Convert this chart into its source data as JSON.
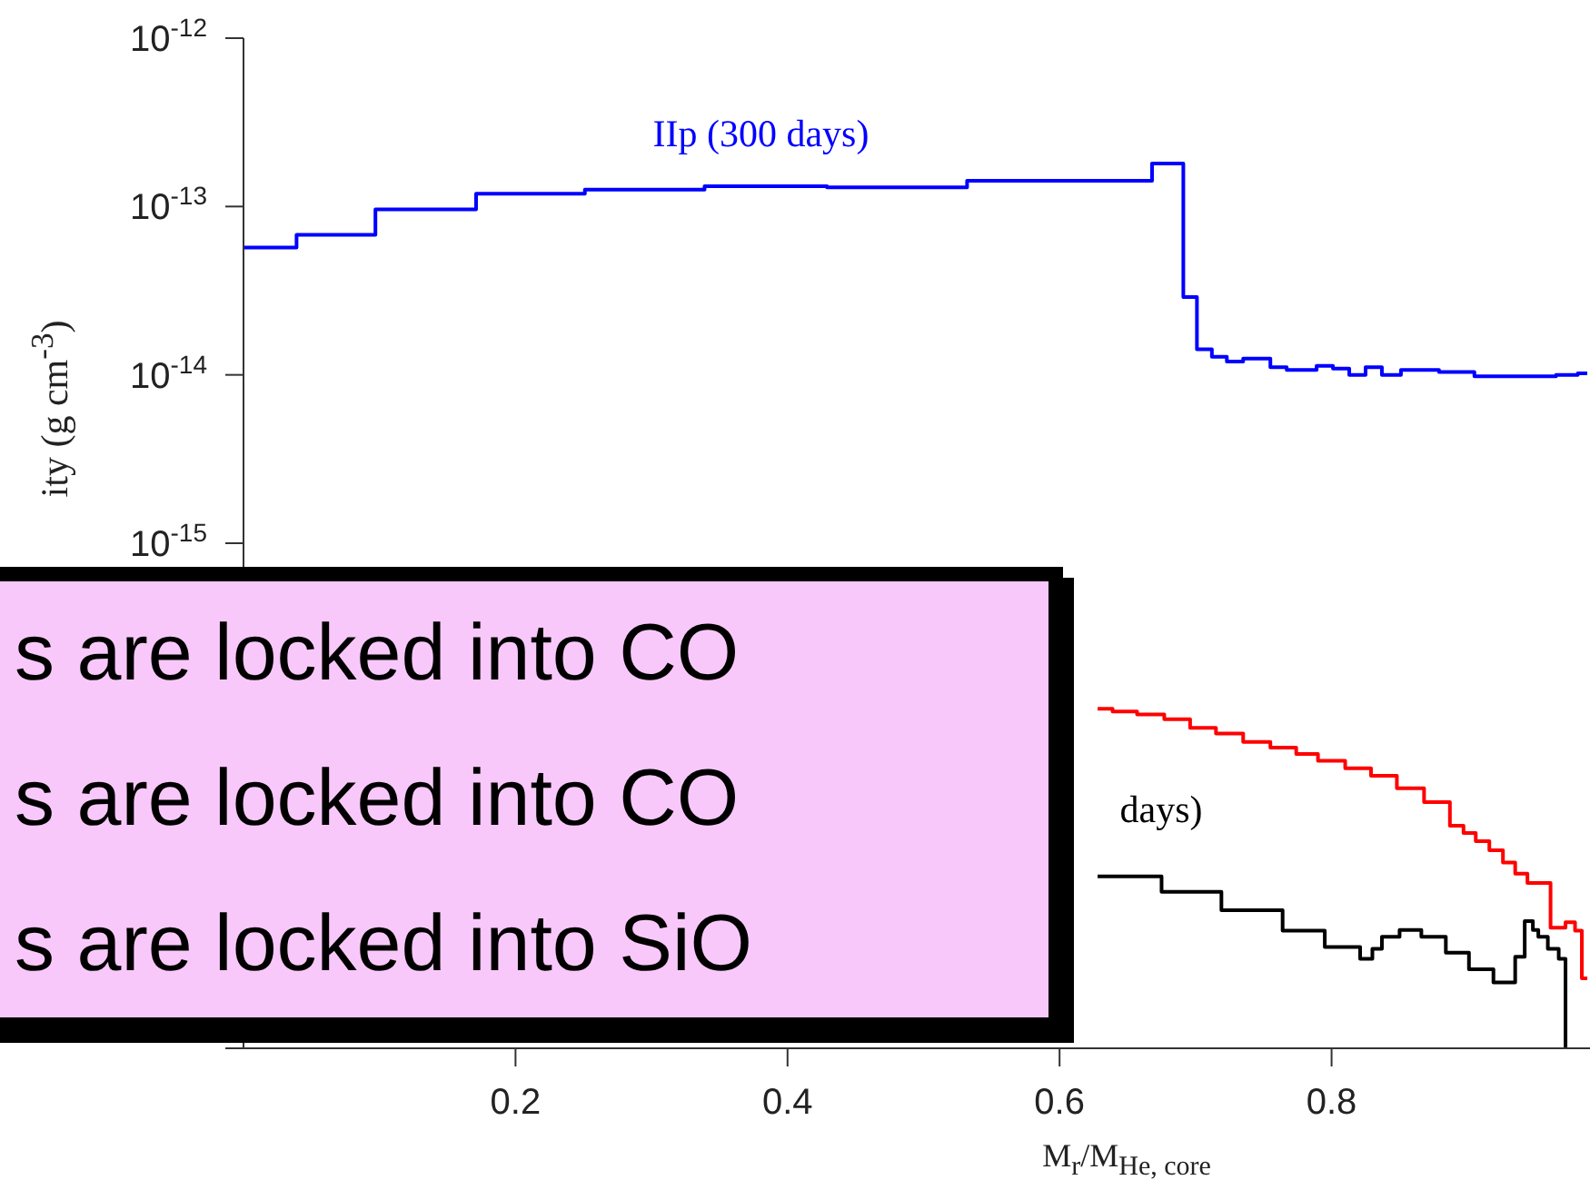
{
  "chart_data": {
    "type": "step",
    "xlabel": "M$_{r}$/M$_{He, core}$",
    "ylabel": "ity (g cm$^{-3}$)",
    "log": "y",
    "xlim": [
      0,
      0.99
    ],
    "xticks": [
      0.2,
      0.4,
      0.6,
      0.8
    ],
    "ylim": [
      1e-18,
      1e-12
    ],
    "yticks": [
      {
        "value": 1e-12,
        "label": "10$^{-12}$"
      },
      {
        "value": 1e-13,
        "label": "10$^{-13}$"
      },
      {
        "value": 1e-14,
        "label": "10$^{-14}$"
      },
      {
        "value": 1e-15,
        "label": "10$^{-15}$"
      },
      {
        "value": 1e-16,
        "label": null
      },
      {
        "value": 1e-17,
        "label": null
      },
      {
        "value": 1e-18,
        "label": null
      }
    ],
    "series": [
      {
        "name": "IIp (300 days)",
        "color": "#0000ff",
        "x": [
          0,
          0.039,
          0.097,
          0.171,
          0.251,
          0.339,
          0.429,
          0.532,
          0.668,
          0.691,
          0.701,
          0.712,
          0.723,
          0.735,
          0.755,
          0.767,
          0.789,
          0.801,
          0.813,
          0.825,
          0.837,
          0.851,
          0.879,
          0.905,
          0.965,
          0.981,
          0.988
        ],
        "values": [
          5.7e-14,
          6.8e-14,
          9.6e-14,
          1.19e-13,
          1.26e-13,
          1.32e-13,
          1.3e-13,
          1.42e-13,
          1.8e-13,
          2.9e-14,
          1.42e-14,
          1.28e-14,
          1.2e-14,
          1.25e-14,
          1.11e-14,
          1.07e-14,
          1.13e-14,
          1.09e-14,
          1e-14,
          1.11e-14,
          1e-14,
          1.07e-14,
          1.04e-14,
          9.8e-15,
          1e-14,
          1.02e-14,
          1.02e-14
        ]
      },
      {
        "name": "days)",
        "color": "#000000",
        "x": [
          0.628,
          0.675,
          0.719,
          0.764,
          0.795,
          0.821,
          0.83,
          0.837,
          0.85,
          0.866,
          0.884,
          0.901,
          0.919,
          0.935,
          0.942,
          0.948,
          0.952,
          0.959,
          0.967,
          0.972
        ],
        "values": [
          1.05e-17,
          8.5e-18,
          6.6e-18,
          5e-18,
          4e-18,
          3.4e-18,
          3.9e-18,
          4.6e-18,
          5.05e-18,
          4.6e-18,
          3.7e-18,
          2.95e-18,
          2.46e-18,
          3.5e-18,
          5.7e-18,
          5.05e-18,
          4.6e-18,
          3.9e-18,
          3.4e-18,
          1e-18
        ]
      },
      {
        "color": "#ff0000",
        "x": [
          0.628,
          0.639,
          0.657,
          0.677,
          0.696,
          0.715,
          0.735,
          0.755,
          0.774,
          0.79,
          0.81,
          0.829,
          0.848,
          0.868,
          0.887,
          0.897,
          0.906,
          0.916,
          0.926,
          0.935,
          0.944,
          0.961,
          0.972,
          0.979,
          0.984,
          0.988
        ],
        "values": [
          1.04e-16,
          1e-16,
          9.6e-17,
          9e-17,
          8e-17,
          7.4e-17,
          6.6e-17,
          6.1e-17,
          5.6e-17,
          5.1e-17,
          4.6e-17,
          4.15e-17,
          3.5e-17,
          2.9e-17,
          2.1e-17,
          1.9e-17,
          1.7e-17,
          1.5e-17,
          1.27e-17,
          1.09e-17,
          9.6e-18,
          5.2e-18,
          5.6e-18,
          5e-18,
          2.6e-18,
          2.6e-18
        ]
      }
    ],
    "annotations": [
      "s are locked into CO",
      "s are locked into CO",
      "s are locked into SiO"
    ]
  }
}
